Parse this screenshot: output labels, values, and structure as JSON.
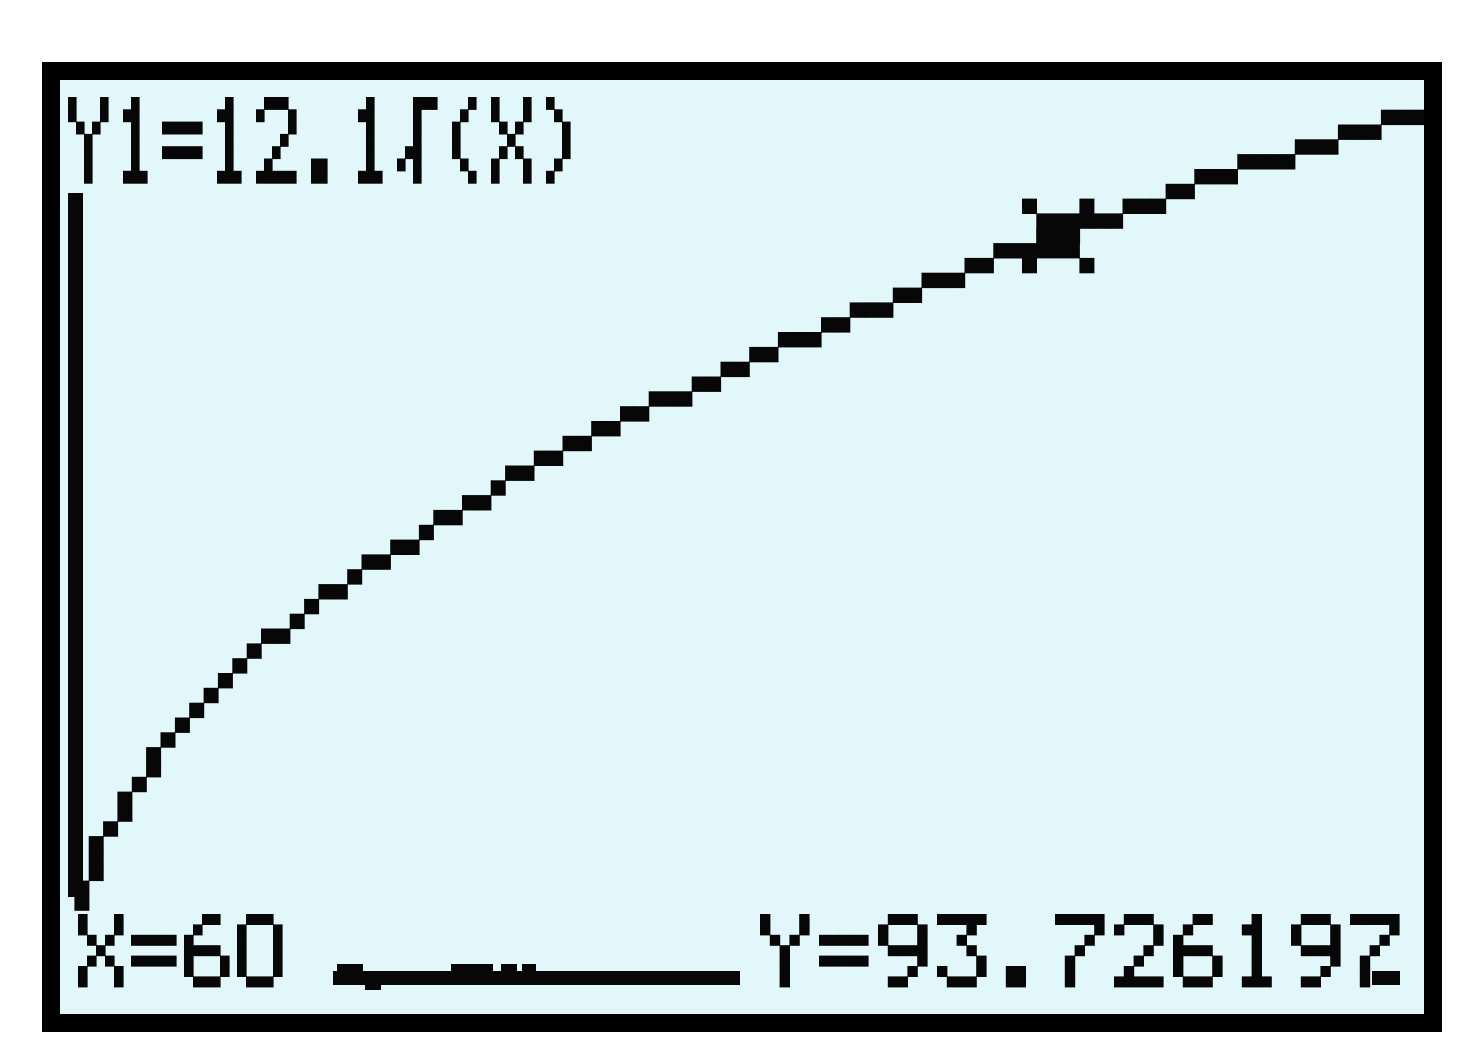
{
  "screen": {
    "background_color": "#e1f7fa",
    "pixel_color": "#070707",
    "frame_color": "#000000",
    "outer_background": "#ffffff",
    "formula_label": "Y1=12.1√(X)",
    "trace_x_label": "X=60",
    "trace_y_label": "Y=93.726197"
  },
  "chart_data": {
    "type": "line",
    "title": "Y1=12.1√(X)",
    "function": {
      "expression": "Y1=12.1*√(X)",
      "coefficient": 12.1
    },
    "trace_point": {
      "X": 60,
      "Y": 93.726197
    },
    "window": {
      "xmin": 0,
      "xmax": 81.74,
      "ymin": -3.75,
      "ymax": 112.47,
      "grid": false,
      "axes_visible": true
    },
    "legend": false,
    "series": [
      {
        "name": "Y1",
        "sample_points": [
          {
            "x": 0,
            "y": 0
          },
          {
            "x": 10,
            "y": 38.26
          },
          {
            "x": 20,
            "y": 54.11
          },
          {
            "x": 30,
            "y": 66.27
          },
          {
            "x": 40,
            "y": 76.53
          },
          {
            "x": 50,
            "y": 85.56
          },
          {
            "x": 60,
            "y": 93.73
          },
          {
            "x": 70,
            "y": 101.24
          },
          {
            "x": 80,
            "y": 108.23
          }
        ]
      }
    ]
  }
}
